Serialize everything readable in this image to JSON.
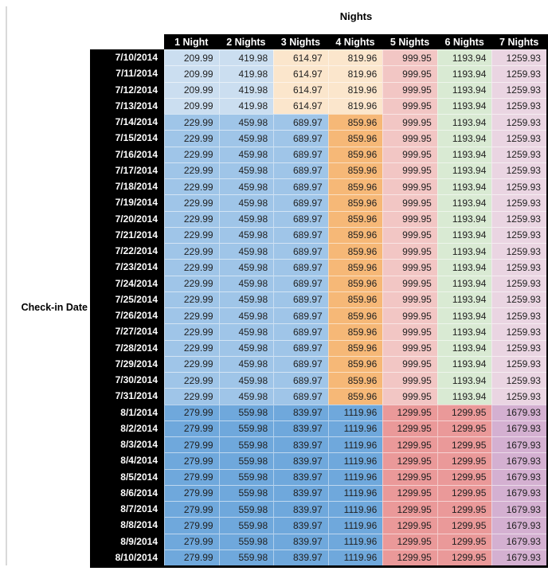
{
  "chart_data": {
    "type": "table",
    "title": "Nights",
    "row_axis_label": "Check-in Date",
    "columns": [
      "1 Night",
      "2 Nights",
      "3 Nights",
      "4 Nights",
      "5 Nights",
      "6 Nights",
      "7 Nights"
    ],
    "color_bands": {
      "early": [
        "#CBDEF0",
        "#CBDEF0",
        "#FBE6CC",
        "#FBE6CC",
        "#F2C6C4",
        "#D9EAD3",
        "#EAD5E2"
      ],
      "mid": [
        "#9FC5E8",
        "#9FC5E8",
        "#9FC5E8",
        "#F6B877",
        "#F2C6C4",
        "#D9EAD3",
        "#EAD5E2"
      ],
      "late": [
        "#6FA8DC",
        "#6FA8DC",
        "#6FA8DC",
        "#6FA8DC",
        "#EA9999",
        "#EA9999",
        "#D4B0D1"
      ]
    },
    "header_bg": "#000000",
    "header_text": "#FFFFFF",
    "rows": [
      {
        "date": "7/10/2014",
        "band": "early",
        "values": [
          "209.99",
          "419.98",
          "614.97",
          "819.96",
          "999.95",
          "1193.94",
          "1259.93"
        ]
      },
      {
        "date": "7/11/2014",
        "band": "early",
        "values": [
          "209.99",
          "419.98",
          "614.97",
          "819.96",
          "999.95",
          "1193.94",
          "1259.93"
        ]
      },
      {
        "date": "7/12/2014",
        "band": "early",
        "values": [
          "209.99",
          "419.98",
          "614.97",
          "819.96",
          "999.95",
          "1193.94",
          "1259.93"
        ]
      },
      {
        "date": "7/13/2014",
        "band": "early",
        "values": [
          "209.99",
          "419.98",
          "614.97",
          "819.96",
          "999.95",
          "1193.94",
          "1259.93"
        ]
      },
      {
        "date": "7/14/2014",
        "band": "mid",
        "values": [
          "229.99",
          "459.98",
          "689.97",
          "859.96",
          "999.95",
          "1193.94",
          "1259.93"
        ]
      },
      {
        "date": "7/15/2014",
        "band": "mid",
        "values": [
          "229.99",
          "459.98",
          "689.97",
          "859.96",
          "999.95",
          "1193.94",
          "1259.93"
        ]
      },
      {
        "date": "7/16/2014",
        "band": "mid",
        "values": [
          "229.99",
          "459.98",
          "689.97",
          "859.96",
          "999.95",
          "1193.94",
          "1259.93"
        ]
      },
      {
        "date": "7/17/2014",
        "band": "mid",
        "values": [
          "229.99",
          "459.98",
          "689.97",
          "859.96",
          "999.95",
          "1193.94",
          "1259.93"
        ]
      },
      {
        "date": "7/18/2014",
        "band": "mid",
        "values": [
          "229.99",
          "459.98",
          "689.97",
          "859.96",
          "999.95",
          "1193.94",
          "1259.93"
        ]
      },
      {
        "date": "7/19/2014",
        "band": "mid",
        "values": [
          "229.99",
          "459.98",
          "689.97",
          "859.96",
          "999.95",
          "1193.94",
          "1259.93"
        ]
      },
      {
        "date": "7/20/2014",
        "band": "mid",
        "values": [
          "229.99",
          "459.98",
          "689.97",
          "859.96",
          "999.95",
          "1193.94",
          "1259.93"
        ]
      },
      {
        "date": "7/21/2014",
        "band": "mid",
        "values": [
          "229.99",
          "459.98",
          "689.97",
          "859.96",
          "999.95",
          "1193.94",
          "1259.93"
        ]
      },
      {
        "date": "7/22/2014",
        "band": "mid",
        "values": [
          "229.99",
          "459.98",
          "689.97",
          "859.96",
          "999.95",
          "1193.94",
          "1259.93"
        ]
      },
      {
        "date": "7/23/2014",
        "band": "mid",
        "values": [
          "229.99",
          "459.98",
          "689.97",
          "859.96",
          "999.95",
          "1193.94",
          "1259.93"
        ]
      },
      {
        "date": "7/24/2014",
        "band": "mid",
        "values": [
          "229.99",
          "459.98",
          "689.97",
          "859.96",
          "999.95",
          "1193.94",
          "1259.93"
        ]
      },
      {
        "date": "7/25/2014",
        "band": "mid",
        "values": [
          "229.99",
          "459.98",
          "689.97",
          "859.96",
          "999.95",
          "1193.94",
          "1259.93"
        ]
      },
      {
        "date": "7/26/2014",
        "band": "mid",
        "values": [
          "229.99",
          "459.98",
          "689.97",
          "859.96",
          "999.95",
          "1193.94",
          "1259.93"
        ]
      },
      {
        "date": "7/27/2014",
        "band": "mid",
        "values": [
          "229.99",
          "459.98",
          "689.97",
          "859.96",
          "999.95",
          "1193.94",
          "1259.93"
        ]
      },
      {
        "date": "7/28/2014",
        "band": "mid",
        "values": [
          "229.99",
          "459.98",
          "689.97",
          "859.96",
          "999.95",
          "1193.94",
          "1259.93"
        ]
      },
      {
        "date": "7/29/2014",
        "band": "mid",
        "values": [
          "229.99",
          "459.98",
          "689.97",
          "859.96",
          "999.95",
          "1193.94",
          "1259.93"
        ]
      },
      {
        "date": "7/30/2014",
        "band": "mid",
        "values": [
          "229.99",
          "459.98",
          "689.97",
          "859.96",
          "999.95",
          "1193.94",
          "1259.93"
        ]
      },
      {
        "date": "7/31/2014",
        "band": "mid",
        "values": [
          "229.99",
          "459.98",
          "689.97",
          "859.96",
          "999.95",
          "1193.94",
          "1259.93"
        ]
      },
      {
        "date": "8/1/2014",
        "band": "late",
        "values": [
          "279.99",
          "559.98",
          "839.97",
          "1119.96",
          "1299.95",
          "1299.95",
          "1679.93"
        ]
      },
      {
        "date": "8/2/2014",
        "band": "late",
        "values": [
          "279.99",
          "559.98",
          "839.97",
          "1119.96",
          "1299.95",
          "1299.95",
          "1679.93"
        ]
      },
      {
        "date": "8/3/2014",
        "band": "late",
        "values": [
          "279.99",
          "559.98",
          "839.97",
          "1119.96",
          "1299.95",
          "1299.95",
          "1679.93"
        ]
      },
      {
        "date": "8/4/2014",
        "band": "late",
        "values": [
          "279.99",
          "559.98",
          "839.97",
          "1119.96",
          "1299.95",
          "1299.95",
          "1679.93"
        ]
      },
      {
        "date": "8/5/2014",
        "band": "late",
        "values": [
          "279.99",
          "559.98",
          "839.97",
          "1119.96",
          "1299.95",
          "1299.95",
          "1679.93"
        ]
      },
      {
        "date": "8/6/2014",
        "band": "late",
        "values": [
          "279.99",
          "559.98",
          "839.97",
          "1119.96",
          "1299.95",
          "1299.95",
          "1679.93"
        ]
      },
      {
        "date": "8/7/2014",
        "band": "late",
        "values": [
          "279.99",
          "559.98",
          "839.97",
          "1119.96",
          "1299.95",
          "1299.95",
          "1679.93"
        ]
      },
      {
        "date": "8/8/2014",
        "band": "late",
        "values": [
          "279.99",
          "559.98",
          "839.97",
          "1119.96",
          "1299.95",
          "1299.95",
          "1679.93"
        ]
      },
      {
        "date": "8/9/2014",
        "band": "late",
        "values": [
          "279.99",
          "559.98",
          "839.97",
          "1119.96",
          "1299.95",
          "1299.95",
          "1679.93"
        ]
      },
      {
        "date": "8/10/2014",
        "band": "late",
        "values": [
          "279.99",
          "559.98",
          "839.97",
          "1119.96",
          "1299.95",
          "1299.95",
          "1679.93"
        ]
      }
    ]
  }
}
